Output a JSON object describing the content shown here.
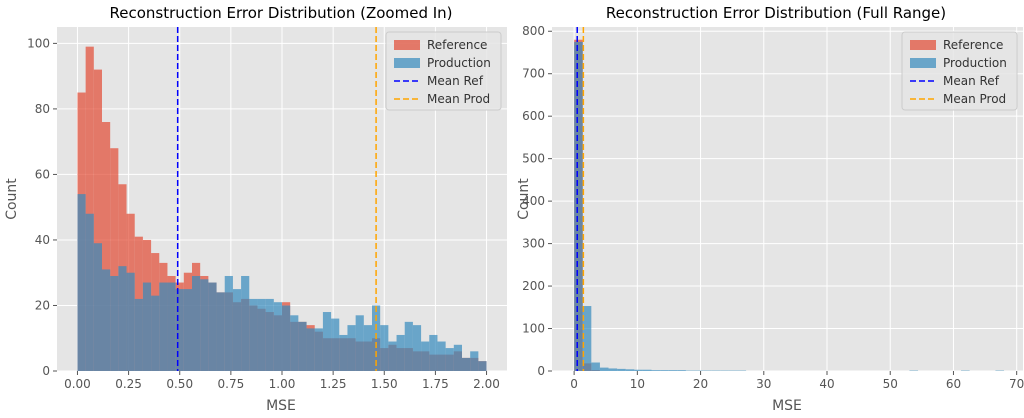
{
  "figure": {
    "background": "#ffffff",
    "panel_background": "#e5e5e5",
    "grid_color": "#ffffff"
  },
  "colors": {
    "reference": "#e24a33",
    "production": "#348abd",
    "mean_ref": "#0000ff",
    "mean_prod": "#ffa500",
    "text": "#555555"
  },
  "legend_labels": [
    "Reference",
    "Production",
    "Mean Ref",
    "Mean Prod"
  ],
  "chart_data": [
    {
      "type": "histogram",
      "title": "Reconstruction Error Distribution (Zoomed In)",
      "xlabel": "MSE",
      "ylabel": "Count",
      "xlim": [
        -0.1,
        2.1
      ],
      "ylim": [
        0,
        105
      ],
      "xticks": [
        0.0,
        0.25,
        0.5,
        0.75,
        1.0,
        1.25,
        1.5,
        1.75,
        2.0
      ],
      "xtick_labels": [
        "0.00",
        "0.25",
        "0.50",
        "0.75",
        "1.00",
        "1.25",
        "1.50",
        "1.75",
        "2.00"
      ],
      "yticks": [
        0,
        20,
        40,
        60,
        80,
        100
      ],
      "ytick_labels": [
        "0",
        "20",
        "40",
        "60",
        "80",
        "100"
      ],
      "grid": true,
      "legend_position": "top-right",
      "bin_edges_start": 0.0,
      "bin_width": 0.04,
      "series": [
        {
          "name": "Reference",
          "values": [
            85,
            99,
            92,
            76,
            68,
            57,
            48,
            41,
            40,
            36,
            33,
            29,
            27,
            30,
            33,
            29,
            27,
            24,
            24,
            21,
            22,
            20,
            19,
            18,
            17,
            21,
            15,
            15,
            14,
            12,
            10,
            10,
            10,
            10,
            9,
            9,
            10,
            7,
            8,
            7,
            7,
            6,
            6,
            5,
            5,
            5,
            6,
            4,
            4,
            3
          ]
        },
        {
          "name": "Production",
          "values": [
            54,
            48,
            39,
            31,
            29,
            32,
            30,
            22,
            27,
            23,
            27,
            27,
            25,
            25,
            29,
            28,
            27,
            24,
            29,
            25,
            29,
            22,
            22,
            22,
            21,
            20,
            17,
            15,
            13,
            13,
            18,
            16,
            11,
            14,
            17,
            14,
            20,
            14,
            9,
            11,
            15,
            14,
            9,
            11,
            9,
            7,
            8,
            4,
            6,
            3
          ]
        },
        {
          "name": "Mean Ref",
          "x": 0.49
        },
        {
          "name": "Mean Prod",
          "x": 1.46
        }
      ]
    },
    {
      "type": "histogram",
      "title": "Reconstruction Error Distribution (Full Range)",
      "xlabel": "MSE",
      "ylabel": "Count",
      "xlim": [
        -3.5,
        71
      ],
      "ylim": [
        0,
        810
      ],
      "xticks": [
        0,
        10,
        20,
        30,
        40,
        50,
        60,
        70
      ],
      "xtick_labels": [
        "0",
        "10",
        "20",
        "30",
        "40",
        "50",
        "60",
        "70"
      ],
      "yticks": [
        0,
        100,
        200,
        300,
        400,
        500,
        600,
        700,
        800
      ],
      "ytick_labels": [
        "0",
        "100",
        "200",
        "300",
        "400",
        "500",
        "600",
        "700",
        "800"
      ],
      "grid": true,
      "legend_position": "top-right",
      "bin_edges_start": 0.0,
      "bin_width": 1.36,
      "series": [
        {
          "name": "Reference",
          "values": [
            780,
            18,
            2
          ]
        },
        {
          "name": "Production",
          "values": [
            775,
            153,
            20,
            8,
            6,
            5,
            4,
            3,
            3,
            2,
            2,
            2,
            2,
            1,
            1,
            1,
            1,
            1,
            1,
            1,
            0,
            0,
            0,
            0,
            0,
            0,
            0,
            0,
            0,
            0,
            0,
            0,
            0,
            0,
            0,
            0,
            0,
            0,
            0,
            1,
            0,
            0,
            0,
            0,
            0,
            1,
            0,
            0,
            0,
            1
          ]
        },
        {
          "name": "Mean Ref",
          "x": 0.49
        },
        {
          "name": "Mean Prod",
          "x": 1.46
        }
      ]
    }
  ]
}
